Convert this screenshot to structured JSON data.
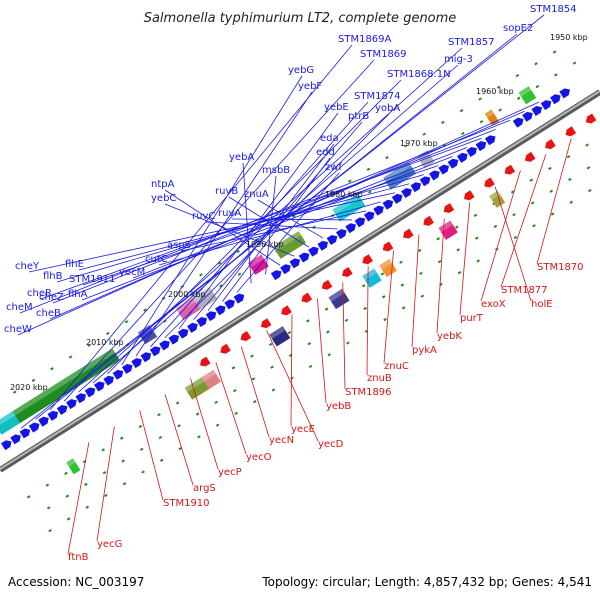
{
  "title": "Salmonella typhimurium LT2, complete genome",
  "footer": {
    "accession": "Accession: NC_003197",
    "summary": "Topology: circular; Length: 4,857,432 bp; Genes: 4,541"
  },
  "colors": {
    "forward_label": "#1a1ae6",
    "reverse_label": "#d41616",
    "forward_arrow": "#1414e6",
    "reverse_arrow": "#e61414",
    "backbone": "#8c8c8c",
    "tick": "#1f8c1f"
  },
  "ruler": [
    {
      "label": "2020 kbp"
    },
    {
      "label": "2010 kbp"
    },
    {
      "label": "2000 kbp"
    },
    {
      "label": "1990 kbp"
    },
    {
      "label": "1980 kbp"
    },
    {
      "label": "1970 kbp"
    },
    {
      "label": "1960 kbp"
    },
    {
      "label": "1950 kbp"
    }
  ],
  "forward_genes": [
    "STM1854",
    "sopE2",
    "STM1869A",
    "STM1869",
    "STM1857",
    "mig-3",
    "STM1868.1N",
    "yebG",
    "yebF",
    "STM1874",
    "yobA",
    "yebE",
    "ptrB",
    "eda",
    "edd",
    "zwf",
    "yebA",
    "msbB",
    "ntpA",
    "yebC",
    "ruvB",
    "znuA",
    "ruvC",
    "ruvA",
    "aspS",
    "cutC",
    "cheY",
    "flhE",
    "flhB",
    "STM1911",
    "flhA",
    "yecM",
    "cheR",
    "cheZ",
    "cheM",
    "cheB",
    "cheW"
  ],
  "reverse_genes": [
    "STM1870",
    "STM1877",
    "exoX",
    "holE",
    "purT",
    "yebK",
    "pykA",
    "znuC",
    "znuB",
    "STM1896",
    "yebB",
    "yecE",
    "yecD",
    "yecN",
    "yecO",
    "yecP",
    "argS",
    "STM1910",
    "yecG",
    "ftnB"
  ]
}
